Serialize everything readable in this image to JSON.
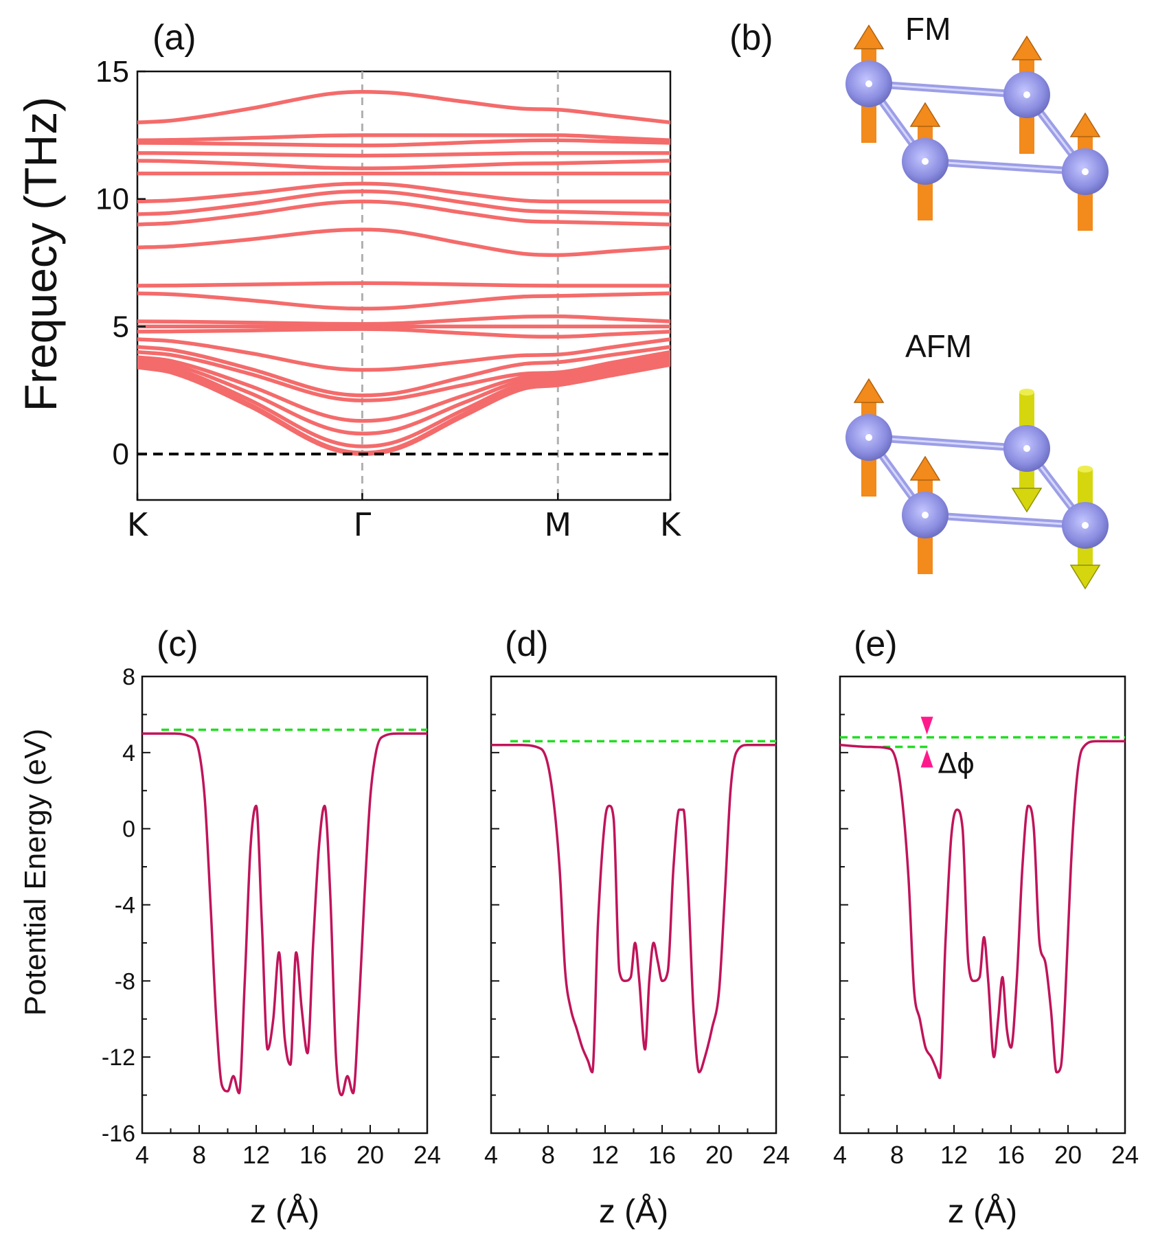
{
  "figure": {
    "panel_labels": [
      "(a)",
      "(b)",
      "(c)",
      "(d)",
      "(e)"
    ]
  },
  "magnetic_configs": {
    "fm_label": "FM",
    "afm_label": "AFM",
    "colors": {
      "atom": "#8a8ce0",
      "bond": "#9c9ee6",
      "spin_up": "#f28a1c",
      "spin_down": "#d6d60e"
    }
  },
  "chart_data": [
    {
      "id": "phonon",
      "type": "line",
      "title": "(a)",
      "ylabel": "Frequecy (THz)",
      "xlabel": "",
      "x_ticks": [
        "K",
        "Γ",
        "M",
        "K"
      ],
      "x_tick_positions": [
        0,
        1,
        1.87,
        2.37
      ],
      "xlim": [
        0,
        2.37
      ],
      "ylim": [
        -1.8,
        15
      ],
      "y_ticks": [
        "0",
        "5",
        "10",
        "15"
      ],
      "y_tick_values": [
        0,
        5,
        10,
        15
      ],
      "line_color": "#f46b6b",
      "reference_line": {
        "y": 0,
        "color": "#000000",
        "style": "dashed"
      },
      "vlines": {
        "x": [
          1,
          1.87
        ],
        "color": "#b0b0b0",
        "style": "dashed"
      },
      "series": [
        {
          "name": "band 1",
          "values": [
            3.4,
            0.0,
            2.7,
            3.5
          ]
        },
        {
          "name": "band 2",
          "values": [
            3.5,
            0.05,
            2.8,
            3.6
          ]
        },
        {
          "name": "band 3",
          "values": [
            3.6,
            0.3,
            2.9,
            3.7
          ]
        },
        {
          "name": "band 4",
          "values": [
            3.7,
            0.8,
            3.0,
            3.8
          ]
        },
        {
          "name": "band 5",
          "values": [
            3.8,
            1.3,
            3.1,
            3.9
          ]
        },
        {
          "name": "band 6",
          "values": [
            4.0,
            2.1,
            3.2,
            4.0
          ]
        },
        {
          "name": "band 7",
          "values": [
            4.2,
            2.3,
            3.6,
            4.2
          ]
        },
        {
          "name": "band 8",
          "values": [
            4.5,
            3.3,
            3.9,
            4.5
          ]
        },
        {
          "name": "band 9",
          "values": [
            4.8,
            4.9,
            4.6,
            4.8
          ]
        },
        {
          "name": "band 10",
          "values": [
            5.0,
            5.0,
            5.0,
            5.0
          ]
        },
        {
          "name": "band 11",
          "values": [
            5.2,
            5.1,
            5.4,
            5.2
          ]
        },
        {
          "name": "band 12",
          "values": [
            6.3,
            5.7,
            6.2,
            6.3
          ]
        },
        {
          "name": "band 13",
          "values": [
            6.6,
            6.7,
            6.6,
            6.6
          ]
        },
        {
          "name": "band 14",
          "values": [
            8.1,
            8.8,
            7.8,
            8.1
          ]
        },
        {
          "name": "band 15",
          "values": [
            9.0,
            9.9,
            9.1,
            9.0
          ]
        },
        {
          "name": "band 16",
          "values": [
            9.4,
            10.3,
            9.5,
            9.4
          ]
        },
        {
          "name": "band 17",
          "values": [
            9.9,
            10.6,
            9.9,
            9.9
          ]
        },
        {
          "name": "band 18",
          "values": [
            11.0,
            11.0,
            11.0,
            11.0
          ]
        },
        {
          "name": "band 19",
          "values": [
            11.5,
            11.2,
            11.4,
            11.5
          ]
        },
        {
          "name": "band 20",
          "values": [
            11.8,
            11.7,
            11.8,
            11.8
          ]
        },
        {
          "name": "band 21",
          "values": [
            12.2,
            12.1,
            12.3,
            12.2
          ]
        },
        {
          "name": "band 22",
          "values": [
            12.3,
            12.5,
            12.5,
            12.3
          ]
        },
        {
          "name": "band 23",
          "values": [
            13.0,
            14.2,
            13.5,
            13.0
          ]
        }
      ]
    },
    {
      "id": "potential-c",
      "type": "line",
      "title": "(c)",
      "xlabel": "z (Å)",
      "ylabel": "Potential Energy (eV)",
      "xlim": [
        4,
        24
      ],
      "ylim": [
        -16,
        8
      ],
      "x_ticks": [
        4,
        8,
        12,
        16,
        20,
        24
      ],
      "y_ticks": [
        8,
        4,
        0,
        -4,
        -8,
        -12,
        -16
      ],
      "line_color": "#c0145a",
      "vacuum_level": 5.2,
      "vacuum_color": "#22dd22",
      "x": [
        4,
        6,
        7.5,
        8.0,
        8.4,
        8.8,
        9.2,
        9.6,
        10.0,
        10.4,
        10.8,
        11.2,
        11.6,
        12.0,
        12.4,
        12.8,
        13.2,
        13.6,
        14.0,
        14.4,
        14.8,
        15.2,
        15.6,
        16.0,
        16.4,
        16.8,
        17.2,
        17.6,
        18.0,
        18.4,
        18.8,
        19.2,
        19.6,
        20.0,
        20.4,
        20.8,
        22,
        24
      ],
      "values": [
        5.0,
        5.0,
        4.8,
        4.0,
        1.5,
        -4.0,
        -10.0,
        -13.5,
        -13.8,
        -13.0,
        -13.9,
        -8.0,
        -1.0,
        1.2,
        -5.0,
        -11.6,
        -10.0,
        -6.5,
        -11.0,
        -12.4,
        -6.5,
        -9.5,
        -11.8,
        -6.0,
        -1.0,
        1.2,
        -3.5,
        -12.0,
        -14.0,
        -13.0,
        -13.9,
        -9.5,
        -3.5,
        1.6,
        4.0,
        4.8,
        5.0,
        5.0
      ]
    },
    {
      "id": "potential-d",
      "type": "line",
      "title": "(d)",
      "xlabel": "z (Å)",
      "xlim": [
        4,
        24
      ],
      "ylim": [
        -16,
        8
      ],
      "x_ticks": [
        4,
        8,
        12,
        16,
        20,
        24
      ],
      "line_color": "#c0145a",
      "vacuum_level": 4.6,
      "vacuum_color": "#22dd22",
      "x": [
        4,
        6,
        7.5,
        8.2,
        8.8,
        9.2,
        9.6,
        10.0,
        10.4,
        10.8,
        11.1,
        11.5,
        12.0,
        12.3,
        12.6,
        13.0,
        13.4,
        13.8,
        14.1,
        14.4,
        14.8,
        15.1,
        15.4,
        15.7,
        16.0,
        16.4,
        16.8,
        17.2,
        17.5,
        17.8,
        18.2,
        18.6,
        19.0,
        19.5,
        20.0,
        20.4,
        20.8,
        21.2,
        22,
        24
      ],
      "values": [
        4.4,
        4.4,
        4.2,
        2.5,
        -2.0,
        -7.5,
        -9.5,
        -10.5,
        -11.5,
        -12.2,
        -12.8,
        -5.0,
        0.5,
        1.2,
        0.5,
        -7.5,
        -8.0,
        -7.8,
        -6.0,
        -8.0,
        -11.6,
        -8.0,
        -6.0,
        -7.0,
        -8.0,
        -7.5,
        -2.0,
        1.0,
        1.0,
        -2.5,
        -9.5,
        -12.8,
        -12.0,
        -10.5,
        -8.5,
        -3.5,
        2.0,
        4.0,
        4.4,
        4.4
      ]
    },
    {
      "id": "potential-e",
      "type": "line",
      "title": "(e)",
      "xlabel": "z (Å)",
      "xlim": [
        4,
        24
      ],
      "ylim": [
        -16,
        8
      ],
      "x_ticks": [
        4,
        8,
        12,
        16,
        20,
        24
      ],
      "line_color": "#c0145a",
      "vacuum_level": 4.8,
      "vacuum_level_left": 4.3,
      "vacuum_color": "#22dd22",
      "annotation": "Δϕ",
      "annotation_x": 10.1,
      "annotation_color": "#ff1a8c",
      "x": [
        4,
        6,
        7.5,
        8.2,
        8.8,
        9.2,
        9.6,
        10.0,
        10.4,
        10.8,
        11.0,
        11.4,
        11.8,
        12.2,
        12.6,
        13.0,
        13.4,
        13.8,
        14.1,
        14.4,
        14.8,
        15.1,
        15.4,
        15.7,
        16.0,
        16.4,
        16.8,
        17.2,
        17.6,
        18.0,
        18.4,
        18.8,
        19.2,
        19.5,
        19.8,
        20.2,
        20.6,
        21.0,
        22,
        24
      ],
      "values": [
        4.4,
        4.3,
        4.2,
        2.5,
        -2.5,
        -8.5,
        -10.0,
        -11.5,
        -12.0,
        -12.7,
        -13.1,
        -6.0,
        -0.5,
        1.0,
        0.0,
        -7.0,
        -8.0,
        -7.8,
        -5.7,
        -8.0,
        -12.0,
        -10.0,
        -7.8,
        -10.5,
        -11.5,
        -8.0,
        -2.0,
        1.2,
        0.0,
        -6.0,
        -7.0,
        -9.5,
        -12.8,
        -12.5,
        -9.0,
        -2.0,
        2.5,
        4.2,
        4.6,
        4.6
      ]
    }
  ]
}
